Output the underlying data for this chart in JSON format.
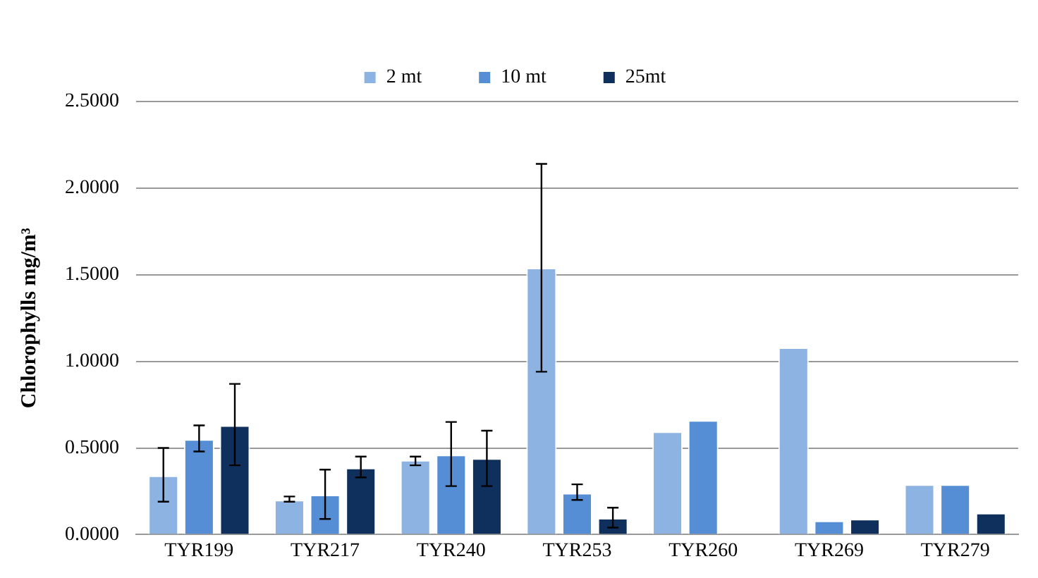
{
  "chart_data": {
    "type": "bar",
    "ylabel": "Chlorophylls mg/m³",
    "categories": [
      "TYR199",
      "TYR217",
      "TYR240",
      "TYR253",
      "TYR260",
      "TYR269",
      "TYR279"
    ],
    "series": [
      {
        "name": "2 mt",
        "color": "#8db3e2",
        "values": [
          0.34,
          0.2,
          0.43,
          1.54,
          0.595,
          1.08,
          0.29
        ],
        "errors": [
          [
            0.19,
            0.5
          ],
          [
            0.19,
            0.22
          ],
          [
            0.4,
            0.45
          ],
          [
            0.94,
            2.14
          ],
          null,
          null,
          null
        ]
      },
      {
        "name": "10 mt",
        "color": "#558ed5",
        "values": [
          0.55,
          0.23,
          0.46,
          0.24,
          0.66,
          0.08,
          0.29
        ],
        "errors": [
          [
            0.48,
            0.63
          ],
          [
            0.09,
            0.375
          ],
          [
            0.28,
            0.65
          ],
          [
            0.2,
            0.29
          ],
          null,
          null,
          null
        ]
      },
      {
        "name": "25mt",
        "color": "#0f305c",
        "values": [
          0.63,
          0.385,
          0.44,
          0.095,
          null,
          0.09,
          0.125
        ],
        "errors": [
          [
            0.4,
            0.87
          ],
          [
            0.33,
            0.45
          ],
          [
            0.28,
            0.6
          ],
          [
            0.04,
            0.155
          ],
          null,
          null,
          null
        ]
      }
    ],
    "ylim": [
      0,
      2.5
    ],
    "yticks": [
      {
        "value": 0,
        "label": "0.0000"
      },
      {
        "value": 0.5,
        "label": "0.5000"
      },
      {
        "value": 1,
        "label": "1.0000"
      },
      {
        "value": 1.5,
        "label": "1.5000"
      },
      {
        "value": 2,
        "label": "2.0000"
      },
      {
        "value": 2.5,
        "label": "2.5000"
      }
    ],
    "grid": "y",
    "legend": "top"
  }
}
